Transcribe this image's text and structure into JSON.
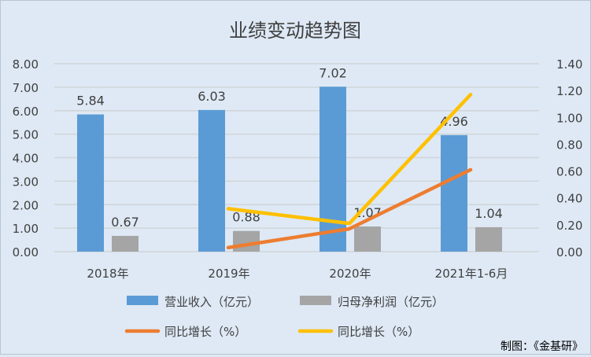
{
  "chart_data": {
    "type": "bar+line",
    "title": "业绩变动趋势图",
    "categories": [
      "2018年",
      "2019年",
      "2020年",
      "2021年1-6月"
    ],
    "bar_series": [
      {
        "name": "营业收入（亿元）",
        "color": "#5b9bd5",
        "values": [
          5.84,
          6.03,
          7.02,
          4.96
        ],
        "labels": [
          "5.84",
          "6.03",
          "7.02",
          "4.96"
        ]
      },
      {
        "name": "归母净利润（亿元）",
        "color": "#a5a5a5",
        "values": [
          0.67,
          0.88,
          1.07,
          1.04
        ],
        "labels": [
          "0.67",
          "0.88",
          "1.07",
          "1.04"
        ]
      }
    ],
    "line_series": [
      {
        "name": "同比增长（%）",
        "color": "#ed7d31",
        "values": [
          null,
          0.03,
          0.17,
          0.61
        ]
      },
      {
        "name": "同比增长（%）",
        "color": "#ffc000",
        "values": [
          null,
          0.32,
          0.21,
          1.17
        ]
      }
    ],
    "left_axis": {
      "ylim": [
        0,
        8
      ],
      "ticks": [
        "0.00",
        "1.00",
        "2.00",
        "3.00",
        "4.00",
        "5.00",
        "6.00",
        "7.00",
        "8.00"
      ]
    },
    "right_axis": {
      "ylim": [
        0,
        1.4
      ],
      "ticks": [
        "0.00",
        "0.20",
        "0.40",
        "0.60",
        "0.80",
        "1.00",
        "1.20",
        "1.40"
      ]
    },
    "grid": true,
    "legend_placement": "bottom"
  },
  "source": "制图：《金基研》"
}
